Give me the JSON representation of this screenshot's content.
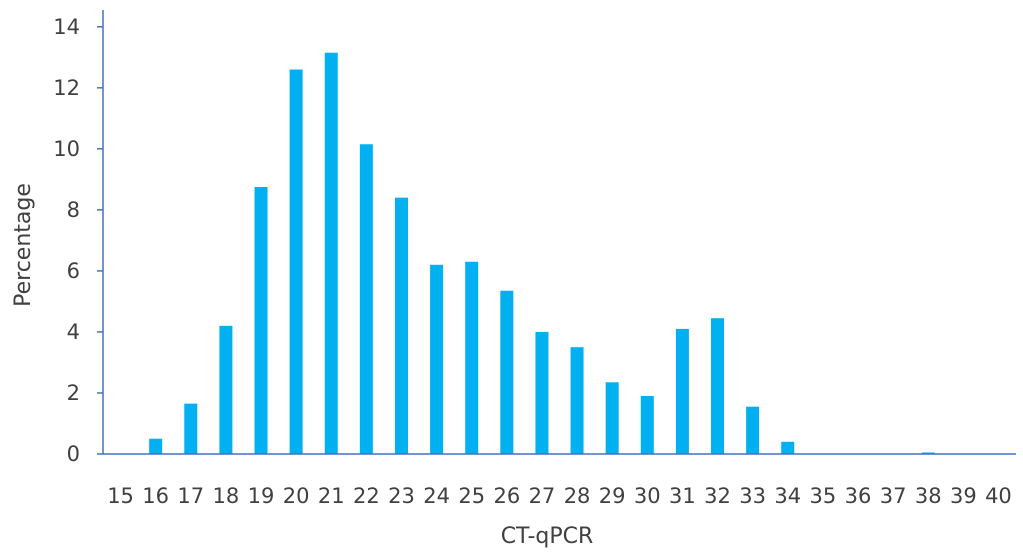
{
  "chart_data": {
    "type": "bar",
    "title": "",
    "xlabel": "CT-qPCR",
    "ylabel": "Percentage",
    "categories": [
      "15",
      "16",
      "17",
      "18",
      "19",
      "20",
      "21",
      "22",
      "23",
      "24",
      "25",
      "26",
      "27",
      "28",
      "29",
      "30",
      "31",
      "32",
      "33",
      "34",
      "35",
      "36",
      "37",
      "38",
      "39",
      "40"
    ],
    "values": [
      0,
      0.5,
      1.65,
      4.2,
      8.75,
      12.6,
      13.15,
      10.15,
      8.4,
      6.2,
      6.3,
      5.35,
      4.0,
      3.5,
      2.35,
      1.9,
      4.1,
      4.45,
      1.55,
      0.4,
      0,
      0,
      0,
      0.05,
      0,
      0
    ],
    "ylim": [
      0,
      14
    ],
    "yticks": [
      0,
      2,
      4,
      6,
      8,
      10,
      12,
      14
    ],
    "grid": false,
    "legend": "none",
    "colors": {
      "bar": "#00B0F0",
      "axis": "#4472C4",
      "text": "#404040"
    }
  }
}
